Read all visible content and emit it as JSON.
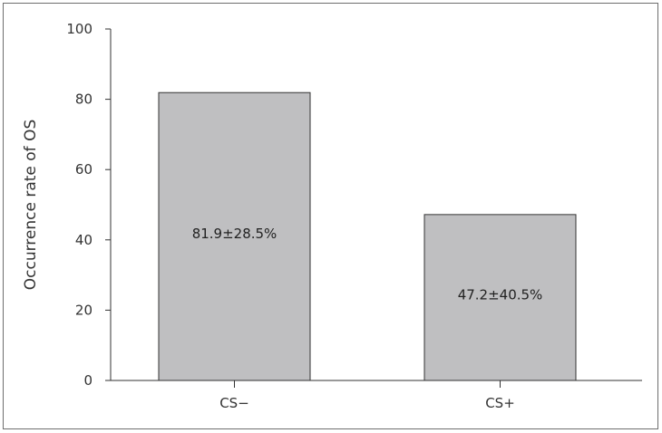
{
  "chart_data": {
    "type": "bar",
    "title": "",
    "xlabel": "",
    "ylabel": "Occurrence rate of OS",
    "ylim": [
      0,
      100
    ],
    "yticks": [
      0,
      20,
      40,
      60,
      80,
      100
    ],
    "ytick_labels": [
      "0",
      "20",
      "40",
      "60",
      "80",
      "100"
    ],
    "categories": [
      "CS−",
      "CS+"
    ],
    "values": [
      81.9,
      47.2
    ],
    "data_labels": [
      "81.9±28.5%",
      "47.2±40.5%"
    ],
    "grid": false,
    "bar_color": "#bfbfc1",
    "bar_edge_color": "#333333",
    "axis_color": "#333333"
  }
}
